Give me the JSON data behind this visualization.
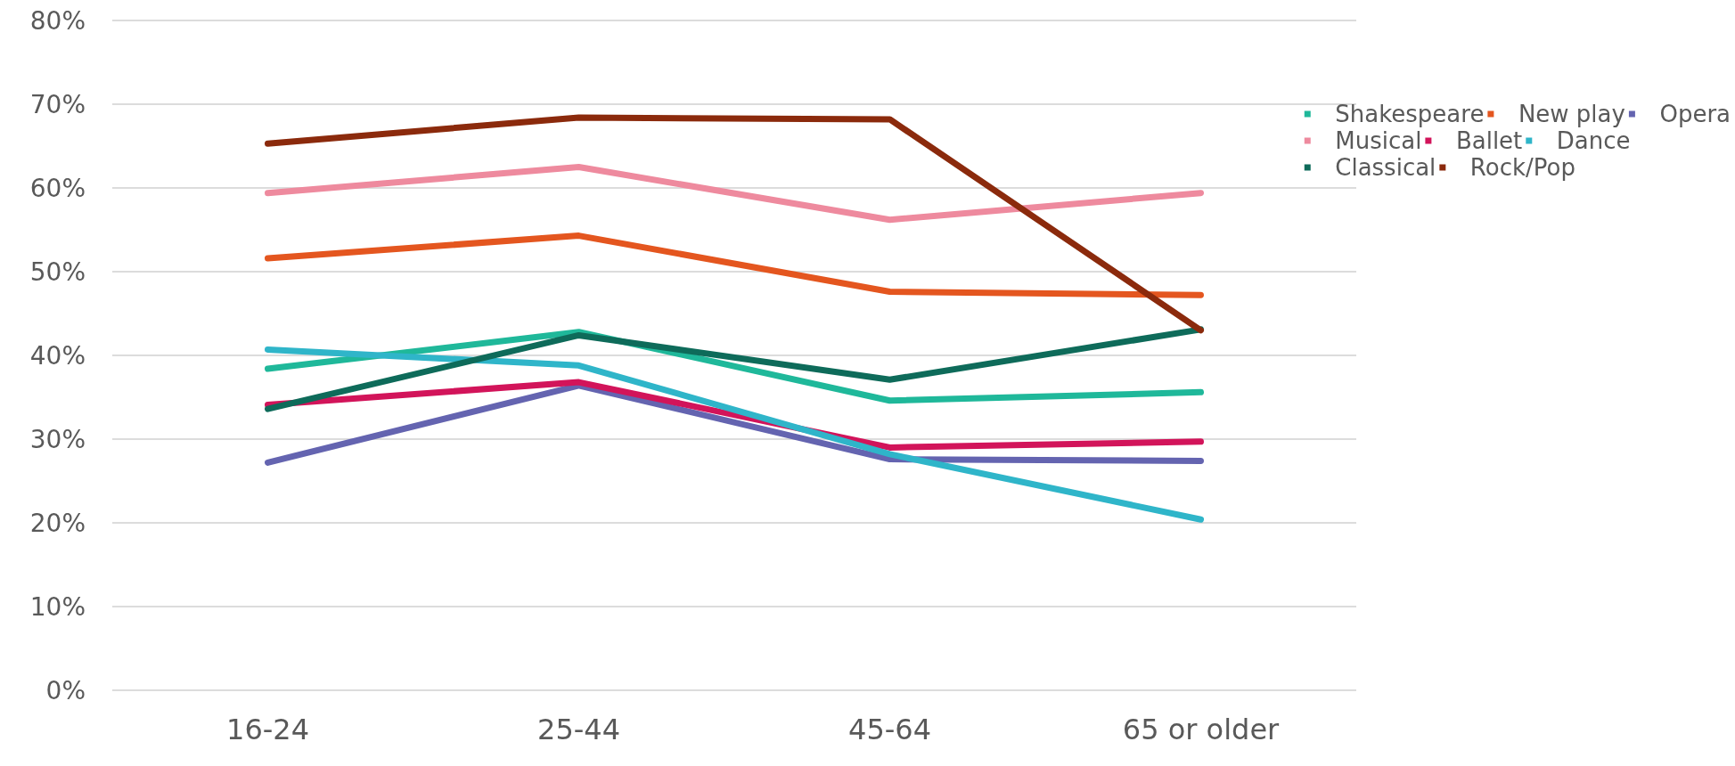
{
  "chart_data": {
    "type": "line",
    "categories": [
      "16-24",
      "25-44",
      "45-64",
      "65 or older"
    ],
    "series": [
      {
        "name": "Shakespeare",
        "color": "#1fb89a",
        "values": [
          38.4,
          42.8,
          34.6,
          35.6
        ]
      },
      {
        "name": "New play",
        "color": "#e4561f",
        "values": [
          51.6,
          54.3,
          47.6,
          47.2
        ]
      },
      {
        "name": "Opera",
        "color": "#6464b0",
        "values": [
          27.2,
          36.4,
          27.6,
          27.4
        ]
      },
      {
        "name": "Musical",
        "color": "#ee8a9e",
        "values": [
          59.4,
          62.5,
          56.2,
          59.4
        ]
      },
      {
        "name": "Ballet",
        "color": "#d2145a",
        "values": [
          34.1,
          36.8,
          29.0,
          29.7
        ]
      },
      {
        "name": "Dance",
        "color": "#2fb5c9",
        "values": [
          40.7,
          38.8,
          28.2,
          20.4
        ]
      },
      {
        "name": "Classical",
        "color": "#0e6b5a",
        "values": [
          33.6,
          42.4,
          37.1,
          43.1
        ]
      },
      {
        "name": "Rock/Pop",
        "color": "#8b2a0c",
        "values": [
          65.3,
          68.4,
          68.2,
          43.0
        ]
      }
    ],
    "ylim": [
      0,
      80
    ],
    "yticks": [
      {
        "value": 0,
        "label": "0%"
      },
      {
        "value": 10,
        "label": "10%"
      },
      {
        "value": 20,
        "label": "20%"
      },
      {
        "value": 30,
        "label": "30%"
      },
      {
        "value": 40,
        "label": "40%"
      },
      {
        "value": 50,
        "label": "50%"
      },
      {
        "value": 60,
        "label": "60%"
      },
      {
        "value": 70,
        "label": "70%"
      },
      {
        "value": 80,
        "label": "80%"
      }
    ],
    "grid": "y",
    "legend": "right",
    "marker": "none",
    "line_style": "solid"
  }
}
